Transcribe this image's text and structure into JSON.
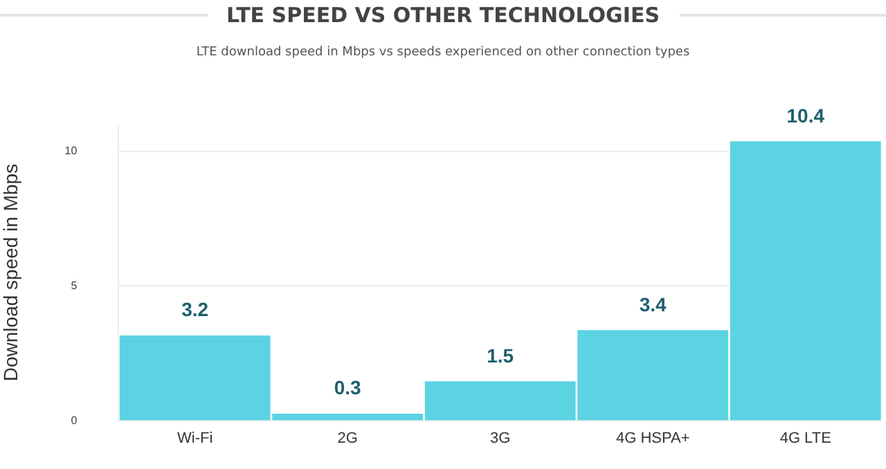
{
  "chart_data": {
    "type": "bar",
    "title": "LTE SPEED VS OTHER TECHNOLOGIES",
    "subtitle": "LTE download speed in Mbps vs speeds experienced on other connection types",
    "ylabel": "Download speed in Mbps",
    "categories": [
      "Wi-Fi",
      "2G",
      "3G",
      "4G HSPA+",
      "4G LTE"
    ],
    "values": [
      3.2,
      0.3,
      1.5,
      3.4,
      10.4
    ],
    "color": "#5bd3e3",
    "ylim": [
      0,
      11
    ],
    "yticks": [
      0,
      5,
      10
    ],
    "grid": "y",
    "data_labels": true
  }
}
